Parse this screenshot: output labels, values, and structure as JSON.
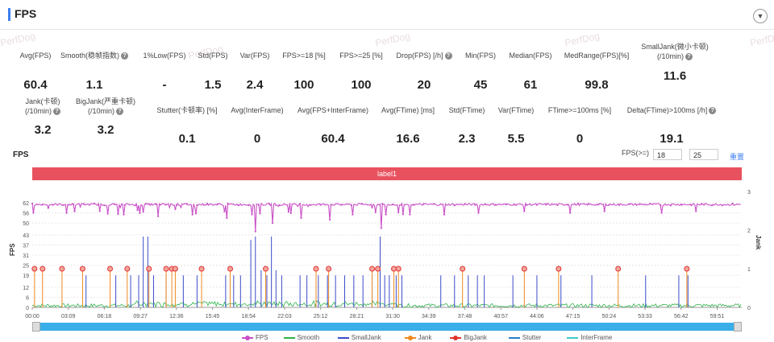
{
  "header": {
    "title": "FPS",
    "collapse_icon": "chevron-down-icon"
  },
  "watermark": "PerfDog",
  "metrics_row1": [
    {
      "label": "Avg(FPS)",
      "value": "60.4",
      "help": false
    },
    {
      "label": "Smooth(稳帧指数)",
      "value": "1.1",
      "help": true
    },
    {
      "label": "1%Low(FPS)",
      "value": "-",
      "help": false
    },
    {
      "label": "Std(FPS)",
      "value": "1.5",
      "help": false
    },
    {
      "label": "Var(FPS)",
      "value": "2.4",
      "help": false
    },
    {
      "label": "FPS>=18 [%]",
      "value": "100",
      "help": false
    },
    {
      "label": "FPS>=25 [%]",
      "value": "100",
      "help": false
    },
    {
      "label": "Drop(FPS) [/h]",
      "value": "20",
      "help": true
    },
    {
      "label": "Min(FPS)",
      "value": "45",
      "help": false
    },
    {
      "label": "Median(FPS)",
      "value": "61",
      "help": false
    },
    {
      "label": "MedRange(FPS)[%]",
      "value": "99.8",
      "help": false
    },
    {
      "label": "SmallJank(微小卡顿)",
      "label2": "(/10min)",
      "value": "11.6",
      "help": true
    }
  ],
  "metrics_row2": [
    {
      "label": "Jank(卡顿)",
      "label2": "(/10min)",
      "value": "3.2",
      "help": true
    },
    {
      "label": "BigJank(严重卡顿)",
      "label2": "(/10min)",
      "value": "3.2",
      "help": true
    },
    {
      "label": "Stutter(卡顿率) [%]",
      "value": "0.1",
      "help": false
    },
    {
      "label": "Avg(InterFrame)",
      "value": "0",
      "help": false
    },
    {
      "label": "Avg(FPS+InterFrame)",
      "value": "60.4",
      "help": false
    },
    {
      "label": "Avg(FTime) [ms]",
      "value": "16.6",
      "help": false
    },
    {
      "label": "Std(FTime)",
      "value": "2.3",
      "help": false
    },
    {
      "label": "Var(FTime)",
      "value": "5.5",
      "help": false
    },
    {
      "label": "FTime>=100ms [%]",
      "value": "0",
      "help": false
    },
    {
      "label": "Delta(FTime)>100ms [/h]",
      "value": "19.1",
      "help": true
    }
  ],
  "chart_header": {
    "title": "FPS",
    "fps_filter_label": "FPS(>=)",
    "fps_threshold_1": "18",
    "fps_threshold_2": "25",
    "reset_label": "重置",
    "label_bar": "label1"
  },
  "chart_data": {
    "type": "line",
    "y_left_label": "FPS",
    "y_right_label": "Jank",
    "y_left_ticks": [
      "0",
      "6",
      "12",
      "19",
      "25",
      "31",
      "37",
      "43",
      "50",
      "56",
      "62"
    ],
    "y_left_range": [
      0,
      62
    ],
    "y_right_ticks": [
      "0",
      "1",
      "2",
      "3"
    ],
    "y_right_range": [
      0,
      3
    ],
    "x_ticks": [
      "00:00",
      "03:09",
      "06:18",
      "09:27",
      "12:36",
      "15:45",
      "18:54",
      "22:03",
      "25:12",
      "28:21",
      "31:30",
      "34:39",
      "37:48",
      "40:57",
      "44:06",
      "47:15",
      "50:24",
      "53:33",
      "56:42",
      "59:51"
    ],
    "x_range_minutes": [
      0,
      62
    ],
    "series": [
      {
        "name": "FPS",
        "color": "#c94fc7",
        "baseline": 61,
        "dips": [
          [
            3,
            56
          ],
          [
            8,
            55
          ],
          [
            11,
            54
          ],
          [
            14,
            55
          ],
          [
            17,
            53
          ],
          [
            19.5,
            45
          ],
          [
            21,
            50
          ],
          [
            23.5,
            53
          ],
          [
            26,
            52
          ],
          [
            28,
            55
          ],
          [
            30.5,
            47
          ],
          [
            33,
            55
          ],
          [
            36,
            55
          ],
          [
            39,
            56
          ],
          [
            43,
            57
          ],
          [
            47,
            56
          ],
          [
            50,
            57
          ],
          [
            55,
            56
          ],
          [
            58,
            57
          ]
        ]
      },
      {
        "name": "Smooth",
        "color": "#2fb34a"
      },
      {
        "name": "SmallJank",
        "color": "#3b4cc9",
        "spikes": [
          [
            4.7,
            19
          ],
          [
            7.3,
            19
          ],
          [
            8.6,
            19
          ],
          [
            9.3,
            19
          ],
          [
            9.7,
            42
          ],
          [
            10.1,
            42
          ],
          [
            10.6,
            19
          ],
          [
            11.7,
            19
          ],
          [
            13.2,
            19
          ],
          [
            14.4,
            19
          ],
          [
            16.9,
            19
          ],
          [
            17.6,
            19
          ],
          [
            18.2,
            19
          ],
          [
            19.1,
            40
          ],
          [
            19.5,
            42
          ],
          [
            20,
            22
          ],
          [
            20.5,
            19
          ],
          [
            20.9,
            42
          ],
          [
            21.3,
            22
          ],
          [
            21.8,
            19
          ],
          [
            23.4,
            19
          ],
          [
            24,
            19
          ],
          [
            25,
            19
          ],
          [
            25.8,
            19
          ],
          [
            26.5,
            19
          ],
          [
            27.3,
            19
          ],
          [
            28.1,
            19
          ],
          [
            28.9,
            19
          ],
          [
            29.7,
            19
          ],
          [
            30.4,
            42
          ],
          [
            30.8,
            19
          ],
          [
            31.2,
            19
          ],
          [
            31.8,
            19
          ],
          [
            32.3,
            19
          ],
          [
            35.7,
            19
          ],
          [
            36.9,
            19
          ],
          [
            38.1,
            19
          ],
          [
            38.9,
            19
          ],
          [
            39.5,
            19
          ],
          [
            42,
            19
          ],
          [
            44.1,
            19
          ],
          [
            46.2,
            19
          ],
          [
            48.9,
            19
          ],
          [
            53.6,
            19
          ],
          [
            56.5,
            19
          ],
          [
            57.3,
            19
          ]
        ]
      },
      {
        "name": "Jank",
        "color": "#f08a1e"
      },
      {
        "name": "BigJank",
        "color": "#e0332e",
        "events": [
          0.2,
          0.9,
          2.6,
          4.4,
          6.8,
          8.3,
          10.2,
          11.7,
          12.2,
          12.5,
          14.8,
          17.3,
          20.4,
          24.8,
          25.9,
          29.7,
          30.2,
          31.6,
          32,
          37.6,
          43,
          46,
          51.2,
          57.2
        ]
      },
      {
        "name": "Stutter",
        "color": "#2a80c8"
      },
      {
        "name": "InterFrame",
        "color": "#40c9c9"
      }
    ]
  },
  "legend": [
    {
      "name": "FPS",
      "color": "#c94fc7",
      "marker": "dot"
    },
    {
      "name": "Smooth",
      "color": "#2fb34a",
      "marker": "line"
    },
    {
      "name": "SmallJank",
      "color": "#3b4cc9",
      "marker": "line"
    },
    {
      "name": "Jank",
      "color": "#f08a1e",
      "marker": "dot"
    },
    {
      "name": "BigJank",
      "color": "#e0332e",
      "marker": "dot"
    },
    {
      "name": "Stutter",
      "color": "#2a80c8",
      "marker": "line"
    },
    {
      "name": "InterFrame",
      "color": "#40c9c9",
      "marker": "line"
    }
  ]
}
